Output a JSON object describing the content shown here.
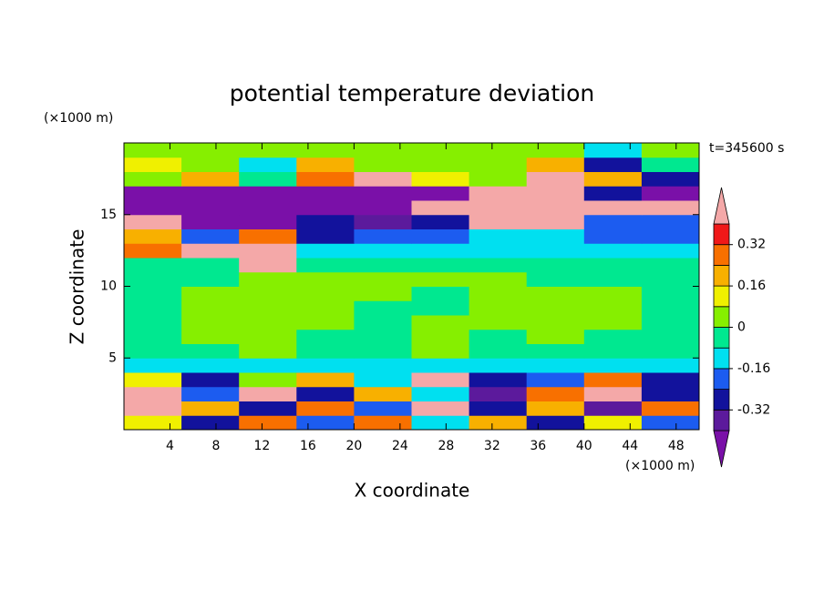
{
  "chart_data": {
    "type": "contour",
    "title": "potential temperature deviation",
    "xlabel": "X coordinate",
    "ylabel": "Z coordinate",
    "x_unit": "(×1000 m)",
    "y_unit": "(×1000 m)",
    "time_label": "t=345600 s",
    "xlim": [
      0,
      50
    ],
    "ylim": [
      0,
      20
    ],
    "xticks": [
      4,
      8,
      12,
      16,
      20,
      24,
      28,
      32,
      36,
      40,
      44,
      48
    ],
    "yticks": [
      5,
      10,
      15
    ],
    "x": [
      2.5,
      7.5,
      12.5,
      17.5,
      22.5,
      27.5,
      32.5,
      37.5,
      42.5,
      47.5
    ],
    "z": [
      0.5,
      1.5,
      2.5,
      3.5,
      4.5,
      5.5,
      6.5,
      7.5,
      8.5,
      9.5,
      10.5,
      11.5,
      12.5,
      13.5,
      14.5,
      15.5,
      16.5,
      17.5,
      18.5,
      19.5
    ],
    "values": [
      [
        0.1,
        -0.3,
        0.3,
        -0.2,
        0.3,
        -0.1,
        0.2,
        -0.3,
        0.1,
        -0.2
      ],
      [
        0.45,
        0.2,
        -0.3,
        0.3,
        -0.2,
        0.4,
        -0.3,
        0.2,
        -0.35,
        0.3
      ],
      [
        0.45,
        -0.2,
        0.45,
        -0.3,
        0.2,
        -0.1,
        -0.35,
        0.3,
        0.45,
        -0.3
      ],
      [
        0.1,
        -0.25,
        0.05,
        0.2,
        -0.1,
        0.45,
        -0.3,
        -0.2,
        0.3,
        -0.3
      ],
      [
        -0.1,
        -0.1,
        -0.1,
        -0.1,
        -0.1,
        -0.1,
        -0.1,
        -0.1,
        -0.1,
        -0.1
      ],
      [
        -0.04,
        -0.04,
        0.04,
        -0.04,
        -0.04,
        0.04,
        -0.04,
        -0.04,
        -0.04,
        -0.04
      ],
      [
        -0.04,
        0.04,
        0.04,
        -0.04,
        -0.04,
        0.04,
        -0.04,
        0.04,
        -0.04,
        -0.04
      ],
      [
        -0.04,
        0.04,
        0.04,
        0.04,
        -0.04,
        0.04,
        0.04,
        0.04,
        0.04,
        -0.04
      ],
      [
        -0.04,
        0.04,
        0.04,
        0.04,
        -0.04,
        -0.04,
        0.04,
        0.04,
        0.04,
        -0.04
      ],
      [
        -0.04,
        0.04,
        0.04,
        0.04,
        0.04,
        -0.04,
        0.04,
        0.04,
        0.04,
        -0.04
      ],
      [
        -0.04,
        -0.04,
        0.04,
        0.04,
        0.04,
        0.04,
        0.04,
        -0.04,
        -0.04,
        -0.04
      ],
      [
        -0.04,
        -0.04,
        0.45,
        -0.04,
        -0.04,
        -0.04,
        -0.04,
        -0.04,
        -0.04,
        -0.04
      ],
      [
        0.3,
        0.45,
        0.45,
        -0.1,
        -0.1,
        -0.1,
        -0.1,
        -0.1,
        -0.1,
        -0.1
      ],
      [
        0.2,
        -0.2,
        0.3,
        -0.3,
        -0.2,
        -0.2,
        -0.1,
        -0.1,
        -0.2,
        -0.2
      ],
      [
        0.45,
        -0.45,
        -0.45,
        -0.3,
        -0.35,
        -0.3,
        0.45,
        0.45,
        -0.2,
        -0.2
      ],
      [
        -0.45,
        -0.45,
        -0.45,
        -0.45,
        -0.45,
        0.45,
        0.45,
        0.45,
        0.45,
        0.45
      ],
      [
        -0.45,
        -0.45,
        -0.45,
        -0.45,
        -0.45,
        -0.45,
        0.45,
        0.45,
        -0.3,
        -0.45
      ],
      [
        0.04,
        0.2,
        -0.04,
        0.3,
        0.45,
        0.1,
        0.04,
        0.45,
        0.2,
        -0.3
      ],
      [
        0.1,
        0.04,
        -0.1,
        0.2,
        0.04,
        0.04,
        0.04,
        0.2,
        -0.3,
        -0.04
      ],
      [
        0.04,
        0.04,
        0.04,
        0.04,
        0.04,
        0.04,
        0.04,
        0.04,
        -0.1,
        0.04
      ]
    ],
    "levels": [
      -0.4,
      -0.32,
      -0.24,
      -0.16,
      -0.08,
      0,
      0.08,
      0.16,
      0.24,
      0.32,
      0.4
    ],
    "colors": [
      "#7a10a8",
      "#5c1a9c",
      "#12129c",
      "#1c5cf0",
      "#00e0f0",
      "#00e890",
      "#86ef00",
      "#f0f000",
      "#f8b000",
      "#f87000",
      "#f01818",
      "#f4a8a8"
    ],
    "colorbar_ticks": [
      -0.32,
      -0.16,
      0,
      0.16,
      0.32
    ]
  }
}
